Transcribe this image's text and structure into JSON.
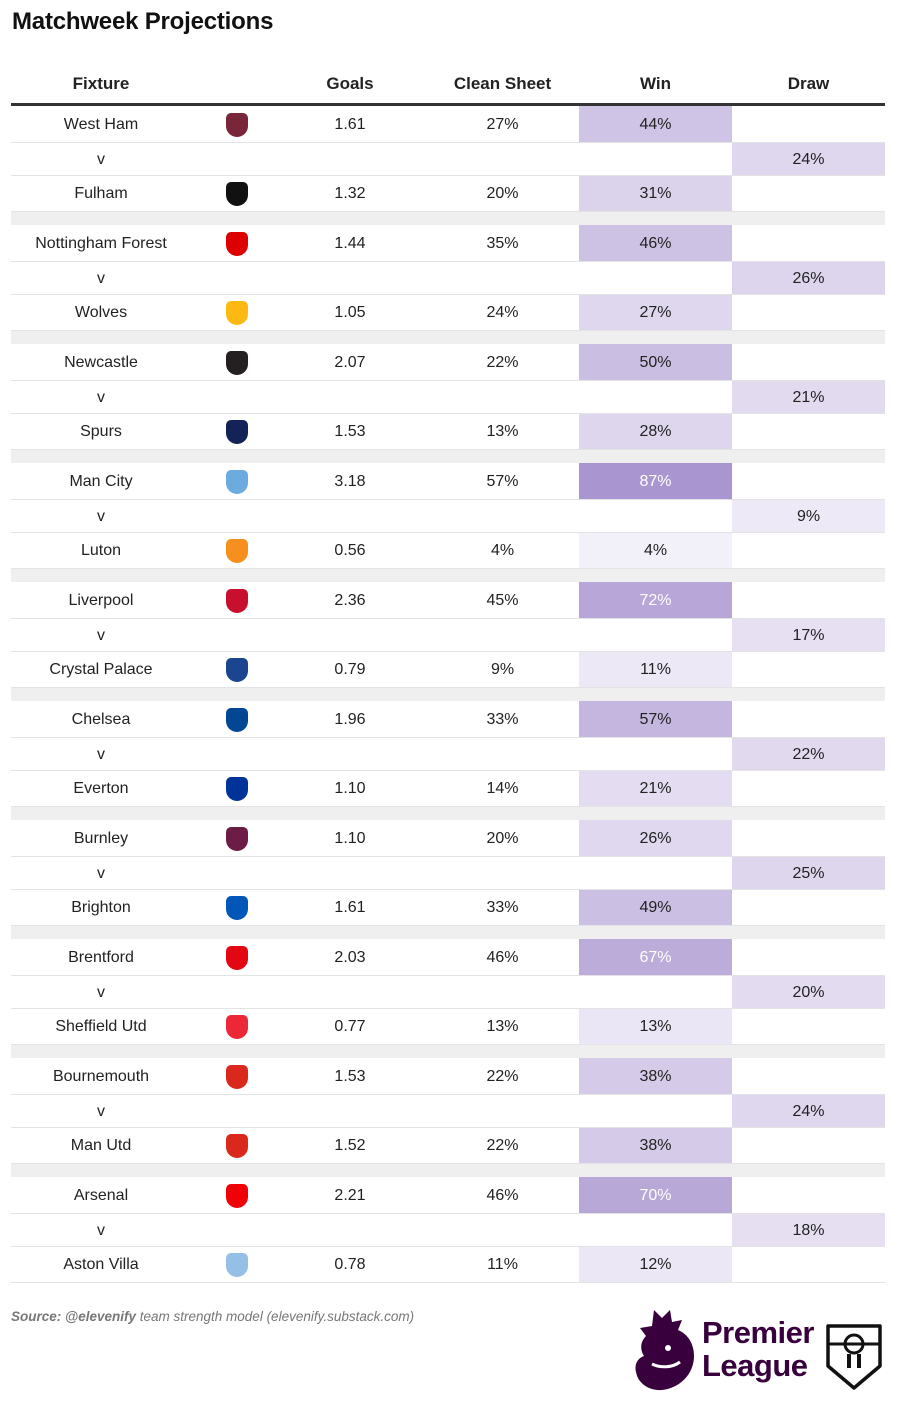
{
  "title": "Matchweek Projections",
  "headers": {
    "fixture": "Fixture",
    "goals": "Goals",
    "clean_sheet": "Clean Sheet",
    "win": "Win",
    "draw": "Draw"
  },
  "vs_label": "v",
  "colors": {
    "win_scale_low": "#f6f4fb",
    "win_scale_high": "#9e88c9",
    "header_rule": "#333333",
    "separator": "#efefef",
    "brand": "#38003c"
  },
  "fixtures": [
    {
      "home": {
        "team": "West Ham",
        "crest": "west-ham-crest",
        "crest_color": "#7a263a",
        "goals": "1.61",
        "clean_sheet": "27%",
        "win": "44%",
        "win_level": 0.44
      },
      "draw": "24%",
      "draw_level": 0.24,
      "away": {
        "team": "Fulham",
        "crest": "fulham-crest",
        "crest_color": "#111111",
        "goals": "1.32",
        "clean_sheet": "20%",
        "win": "31%",
        "win_level": 0.31
      }
    },
    {
      "home": {
        "team": "Nottingham Forest",
        "crest": "nottingham-forest-crest",
        "crest_color": "#dd0000",
        "goals": "1.44",
        "clean_sheet": "35%",
        "win": "46%",
        "win_level": 0.46
      },
      "draw": "26%",
      "draw_level": 0.26,
      "away": {
        "team": "Wolves",
        "crest": "wolves-crest",
        "crest_color": "#fdb913",
        "goals": "1.05",
        "clean_sheet": "24%",
        "win": "27%",
        "win_level": 0.27
      }
    },
    {
      "home": {
        "team": "Newcastle",
        "crest": "newcastle-crest",
        "crest_color": "#241f20",
        "goals": "2.07",
        "clean_sheet": "22%",
        "win": "50%",
        "win_level": 0.5
      },
      "draw": "21%",
      "draw_level": 0.21,
      "away": {
        "team": "Spurs",
        "crest": "spurs-crest",
        "crest_color": "#132257",
        "goals": "1.53",
        "clean_sheet": "13%",
        "win": "28%",
        "win_level": 0.28
      }
    },
    {
      "home": {
        "team": "Man City",
        "crest": "man-city-crest",
        "crest_color": "#6cabdd",
        "goals": "3.18",
        "clean_sheet": "57%",
        "win": "87%",
        "win_level": 0.87
      },
      "draw": "9%",
      "draw_level": 0.09,
      "away": {
        "team": "Luton",
        "crest": "luton-crest",
        "crest_color": "#f78f1e",
        "goals": "0.56",
        "clean_sheet": "4%",
        "win": "4%",
        "win_level": 0.04
      }
    },
    {
      "home": {
        "team": "Liverpool",
        "crest": "liverpool-crest",
        "crest_color": "#c8102e",
        "goals": "2.36",
        "clean_sheet": "45%",
        "win": "72%",
        "win_level": 0.72
      },
      "draw": "17%",
      "draw_level": 0.17,
      "away": {
        "team": "Crystal Palace",
        "crest": "crystal-palace-crest",
        "crest_color": "#1b458f",
        "goals": "0.79",
        "clean_sheet": "9%",
        "win": "11%",
        "win_level": 0.11
      }
    },
    {
      "home": {
        "team": "Chelsea",
        "crest": "chelsea-crest",
        "crest_color": "#034694",
        "goals": "1.96",
        "clean_sheet": "33%",
        "win": "57%",
        "win_level": 0.57
      },
      "draw": "22%",
      "draw_level": 0.22,
      "away": {
        "team": "Everton",
        "crest": "everton-crest",
        "crest_color": "#003399",
        "goals": "1.10",
        "clean_sheet": "14%",
        "win": "21%",
        "win_level": 0.21
      }
    },
    {
      "home": {
        "team": "Burnley",
        "crest": "burnley-crest",
        "crest_color": "#6c1d45",
        "goals": "1.10",
        "clean_sheet": "20%",
        "win": "26%",
        "win_level": 0.26
      },
      "draw": "25%",
      "draw_level": 0.25,
      "away": {
        "team": "Brighton",
        "crest": "brighton-crest",
        "crest_color": "#0057b8",
        "goals": "1.61",
        "clean_sheet": "33%",
        "win": "49%",
        "win_level": 0.49
      }
    },
    {
      "home": {
        "team": "Brentford",
        "crest": "brentford-crest",
        "crest_color": "#e30613",
        "goals": "2.03",
        "clean_sheet": "46%",
        "win": "67%",
        "win_level": 0.67
      },
      "draw": "20%",
      "draw_level": 0.2,
      "away": {
        "team": "Sheffield Utd",
        "crest": "sheffield-utd-crest",
        "crest_color": "#ee2737",
        "goals": "0.77",
        "clean_sheet": "13%",
        "win": "13%",
        "win_level": 0.13
      }
    },
    {
      "home": {
        "team": "Bournemouth",
        "crest": "bournemouth-crest",
        "crest_color": "#da291c",
        "goals": "1.53",
        "clean_sheet": "22%",
        "win": "38%",
        "win_level": 0.38
      },
      "draw": "24%",
      "draw_level": 0.24,
      "away": {
        "team": "Man Utd",
        "crest": "man-utd-crest",
        "crest_color": "#da291c",
        "goals": "1.52",
        "clean_sheet": "22%",
        "win": "38%",
        "win_level": 0.38
      }
    },
    {
      "home": {
        "team": "Arsenal",
        "crest": "arsenal-crest",
        "crest_color": "#ef0107",
        "goals": "2.21",
        "clean_sheet": "46%",
        "win": "70%",
        "win_level": 0.7
      },
      "draw": "18%",
      "draw_level": 0.18,
      "away": {
        "team": "Aston Villa",
        "crest": "aston-villa-crest",
        "crest_color": "#95bfe5",
        "goals": "0.78",
        "clean_sheet": "11%",
        "win": "12%",
        "win_level": 0.12
      }
    }
  ],
  "footer": {
    "source_label": "Source:",
    "source_handle": "@elevenify",
    "source_text": "team strength model (elevenify.substack.com)",
    "league_logo_line1": "Premier",
    "league_logo_line2": "League"
  }
}
